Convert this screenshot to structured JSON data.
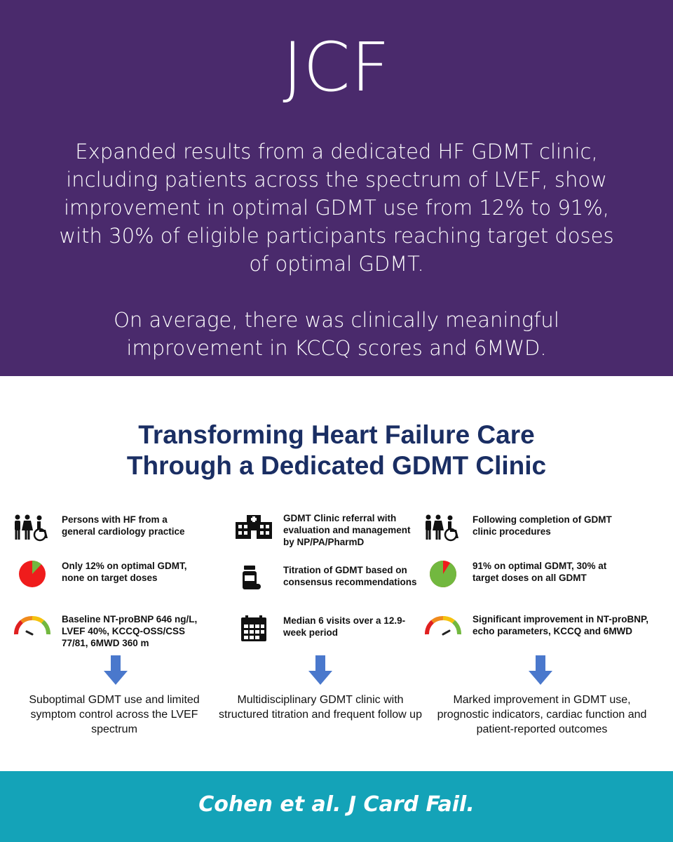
{
  "header": {
    "journal": "JCF",
    "summary_1": "Expanded results from a dedicated HF GDMT clinic, including patients across the spectrum of LVEF, show improvement in optimal GDMT use from 12% to 91%, with 30% of eligible participants reaching target doses of optimal GDMT.",
    "summary_2": "On average, there was clinically meaningful improvement in KCCQ scores and 6MWD."
  },
  "graphic": {
    "title_line1": "Transforming Heart Failure Care",
    "title_line2": "Through a Dedicated GDMT Clinic",
    "columns": [
      {
        "rows": [
          {
            "icon": "people-icon",
            "text": "Persons with HF from a general cardiology practice"
          },
          {
            "icon": "pie-chart-icon",
            "text": "Only 12% on optimal GDMT, none on target doses"
          },
          {
            "icon": "gauge-icon",
            "text": "Baseline NT-proBNP 646 ng/L, LVEF 40%, KCCQ-OSS/CSS 77/81, 6MWD 360 m"
          }
        ],
        "outcome": "Suboptimal GDMT use and limited symptom control across the LVEF spectrum",
        "gdmt_optimal_fraction": 0.12
      },
      {
        "rows": [
          {
            "icon": "hospital-icon",
            "text": "GDMT Clinic referral with evaluation and management by NP/PA/PharmD"
          },
          {
            "icon": "pill-bottle-icon",
            "text": "Titration of GDMT based on consensus recommendations"
          },
          {
            "icon": "calendar-icon",
            "text": "Median 6 visits over a 12.9-week period"
          }
        ],
        "outcome": "Multidisciplinary GDMT clinic with structured titration and frequent follow up"
      },
      {
        "rows": [
          {
            "icon": "people-icon",
            "text": "Following completion of GDMT clinic procedures"
          },
          {
            "icon": "pie-chart-icon",
            "text": "91% on optimal GDMT, 30% at target doses on all GDMT"
          },
          {
            "icon": "gauge-icon",
            "text": "Significant improvement in NT-proBNP, echo parameters, KCCQ and 6MWD"
          }
        ],
        "outcome": "Marked improvement in GDMT use, prognostic indicators, cardiac function and patient-reported outcomes",
        "gdmt_optimal_fraction": 0.91
      }
    ],
    "colors": {
      "title": "#1a2e63",
      "pie_red": "#ef1c1c",
      "pie_green": "#72b83f",
      "arrow": "#4a78cc"
    }
  },
  "footer": {
    "citation": "Cohen et al. J Card Fail."
  }
}
